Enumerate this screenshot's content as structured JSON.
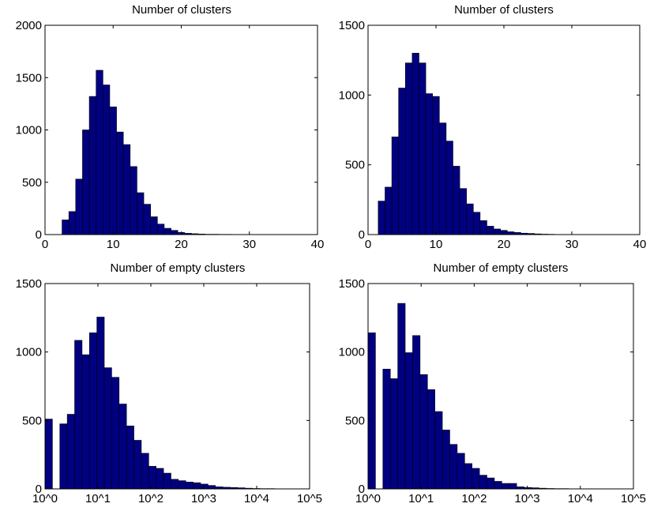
{
  "style": {
    "bar_color": "#000080",
    "bar_edge_color": "#000000",
    "background": "#ffffff"
  },
  "chart_data": [
    {
      "type": "bar",
      "title": "Number of clusters",
      "xlabel": "",
      "ylabel": "",
      "xlim": [
        0,
        40
      ],
      "ylim": [
        0,
        2000
      ],
      "x_ticks": [
        0,
        10,
        20,
        30,
        40
      ],
      "x_tick_labels": [
        "0",
        "10",
        "20",
        "30",
        "40"
      ],
      "y_ticks": [
        0,
        500,
        1000,
        1500,
        2000
      ],
      "y_tick_labels": [
        "0",
        "500",
        "1000",
        "1500",
        "2000"
      ],
      "grid": false,
      "bin_width": 1,
      "bin_centers": [
        3,
        4,
        5,
        6,
        7,
        8,
        9,
        10,
        11,
        12,
        13,
        14,
        15,
        16,
        17,
        18,
        19,
        20,
        21,
        22,
        23,
        24,
        25,
        26,
        27,
        28,
        29,
        30,
        31,
        32,
        33,
        34,
        35,
        36,
        37
      ],
      "values": [
        140,
        220,
        530,
        1000,
        1320,
        1570,
        1430,
        1220,
        980,
        860,
        650,
        400,
        290,
        170,
        100,
        60,
        40,
        20,
        12,
        8,
        5,
        3,
        3,
        2,
        2,
        1,
        1,
        1,
        1,
        0,
        0,
        0,
        0,
        0,
        1
      ]
    },
    {
      "type": "bar",
      "title": "Number of clusters",
      "xlabel": "",
      "ylabel": "",
      "xlim": [
        0,
        40
      ],
      "ylim": [
        0,
        1500
      ],
      "x_ticks": [
        0,
        10,
        20,
        30,
        40
      ],
      "x_tick_labels": [
        "0",
        "10",
        "20",
        "30",
        "40"
      ],
      "y_ticks": [
        0,
        500,
        1000,
        1500
      ],
      "y_tick_labels": [
        "0",
        "500",
        "1000",
        "1500"
      ],
      "grid": false,
      "bin_width": 1,
      "bin_centers": [
        2,
        3,
        4,
        5,
        6,
        7,
        8,
        9,
        10,
        11,
        12,
        13,
        14,
        15,
        16,
        17,
        18,
        19,
        20,
        21,
        22,
        23,
        24,
        25,
        26,
        27,
        28,
        29,
        30,
        31,
        32,
        33,
        34,
        35,
        36
      ],
      "values": [
        240,
        340,
        700,
        1050,
        1230,
        1300,
        1230,
        1010,
        990,
        800,
        670,
        490,
        330,
        220,
        160,
        100,
        60,
        40,
        30,
        20,
        15,
        10,
        8,
        5,
        3,
        2,
        1,
        1,
        1,
        0,
        0,
        0,
        0,
        1,
        0
      ]
    },
    {
      "type": "bar",
      "title": "Number of empty clusters",
      "xlabel": "",
      "ylabel": "",
      "xscale": "log",
      "xlim": [
        1,
        100000
      ],
      "ylim": [
        0,
        1500
      ],
      "x_ticks": [
        1,
        10,
        100,
        1000,
        10000,
        100000
      ],
      "x_tick_labels": [
        "10^0",
        "10^1",
        "10^2",
        "10^3",
        "10^4",
        "10^5"
      ],
      "y_ticks": [
        0,
        500,
        1000,
        1500
      ],
      "y_tick_labels": [
        "0",
        "500",
        "1000",
        "1500"
      ],
      "grid": false,
      "bin_log_width": 0.14,
      "bin_log_start": 0,
      "values": [
        510,
        0,
        475,
        545,
        1085,
        980,
        1140,
        1255,
        885,
        815,
        620,
        460,
        355,
        260,
        165,
        150,
        115,
        70,
        60,
        50,
        45,
        35,
        25,
        15,
        12,
        10,
        8,
        5,
        3,
        2,
        2,
        1,
        1,
        0,
        0,
        0
      ]
    },
    {
      "type": "bar",
      "title": "Number of empty clusters",
      "xlabel": "",
      "ylabel": "",
      "xscale": "log",
      "xlim": [
        1,
        100000
      ],
      "ylim": [
        0,
        1500
      ],
      "x_ticks": [
        1,
        10,
        100,
        1000,
        10000,
        100000
      ],
      "x_tick_labels": [
        "10^0",
        "10^1",
        "10^2",
        "10^3",
        "10^4",
        "10^5"
      ],
      "y_ticks": [
        0,
        500,
        1000,
        1500
      ],
      "y_tick_labels": [
        "0",
        "500",
        "1000",
        "1500"
      ],
      "grid": false,
      "bin_log_width": 0.14,
      "bin_log_start": 0,
      "values": [
        1140,
        0,
        875,
        805,
        1355,
        995,
        1120,
        835,
        725,
        565,
        430,
        325,
        260,
        185,
        150,
        100,
        80,
        55,
        40,
        40,
        15,
        10,
        8,
        5,
        3,
        2,
        2,
        1,
        1,
        0,
        0,
        0,
        0,
        0,
        0,
        0
      ]
    }
  ]
}
